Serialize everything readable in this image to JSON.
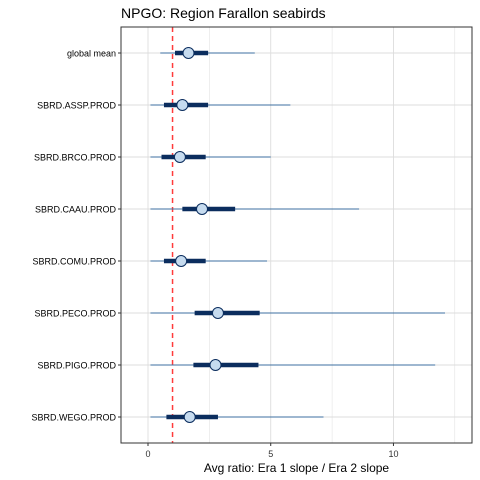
{
  "chart_data": {
    "type": "forest",
    "title": "NPGO: Region Farallon seabirds",
    "xlabel": "Avg ratio: Era 1 slope / Era 2 slope",
    "ylabel": "",
    "xlim": [
      -1.1,
      13.2
    ],
    "xticks": [
      0,
      5,
      10
    ],
    "xtick_labels": [
      "0",
      "5",
      "10"
    ],
    "reference_line": {
      "x": 1,
      "style": "dashed",
      "color": "#ff3b3b"
    },
    "grid": true,
    "categories": [
      "global mean",
      "SBRD.ASSP.PROD",
      "SBRD.BRCO.PROD",
      "SBRD.CAAU.PROD",
      "SBRD.COMU.PROD",
      "SBRD.PECO.PROD",
      "SBRD.PIGO.PROD",
      "SBRD.WEGO.PROD"
    ],
    "median": [
      1.65,
      1.4,
      1.3,
      2.2,
      1.35,
      2.85,
      2.75,
      1.7
    ],
    "inner_lo": [
      1.1,
      0.65,
      0.55,
      1.4,
      0.65,
      1.9,
      1.85,
      0.75
    ],
    "inner_hi": [
      2.45,
      2.45,
      2.35,
      3.55,
      2.35,
      4.55,
      4.5,
      2.85
    ],
    "outer_lo": [
      0.5,
      0.1,
      0.1,
      0.1,
      0.1,
      0.1,
      0.1,
      0.1
    ],
    "outer_hi": [
      4.35,
      5.8,
      5.0,
      8.6,
      4.85,
      12.1,
      11.7,
      7.15
    ],
    "colors": {
      "outer": "#3d6fa0",
      "inner": "#0b2d5e",
      "point_fill": "#c6dbef",
      "point_stroke": "#0b2d5e",
      "panel_border": "#333333",
      "grid": "#dddddd"
    }
  }
}
